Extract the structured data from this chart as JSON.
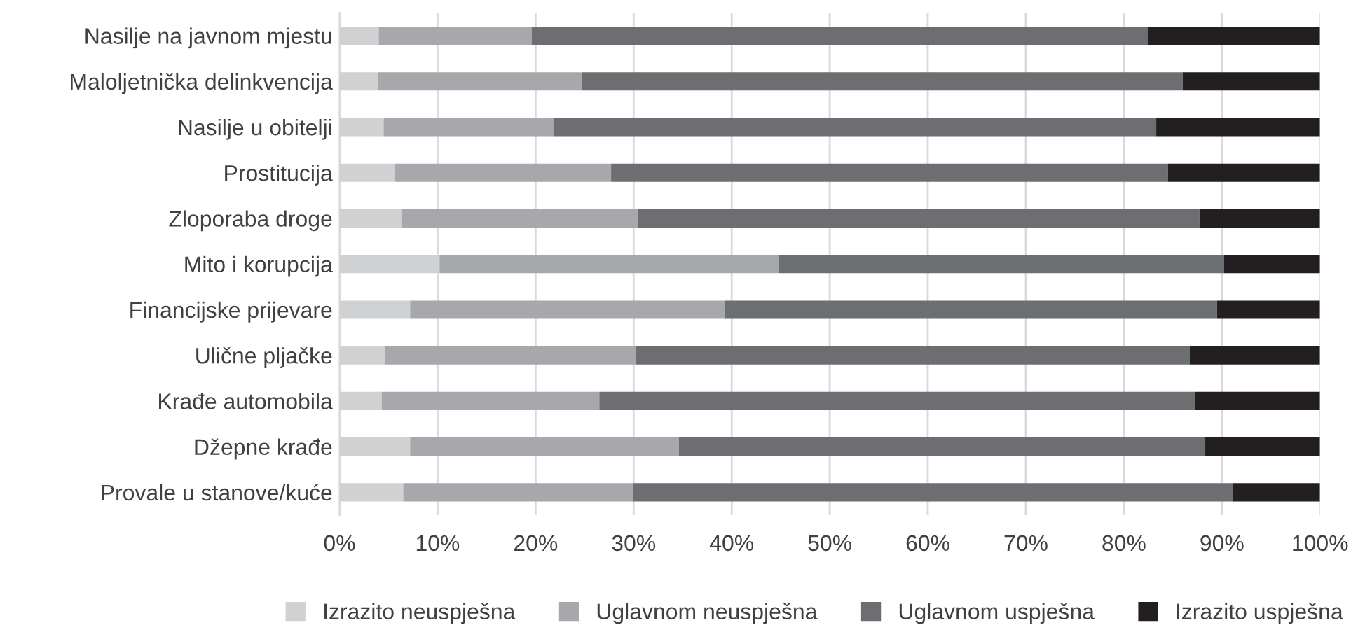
{
  "chart_data": {
    "type": "bar",
    "orientation": "horizontal",
    "stacked": true,
    "categories": [
      "Nasilje na javnom mjestu",
      "Maloljetnička delinkvencija",
      "Nasilje u obitelji",
      "Prostitucija",
      "Zloporaba droge",
      "Mito i korupcija",
      "Financijske prijevare",
      "Ulične pljačke",
      "Krađe automobila",
      "Džepne krađe",
      "Provale u stanove/kuće"
    ],
    "series": [
      {
        "name": "Izrazito neuspješna",
        "color": "#d0d1d3",
        "values": [
          4,
          3.9,
          4.5,
          5.6,
          6.3,
          10.2,
          7.2,
          4.6,
          4.3,
          7.2,
          6.5
        ]
      },
      {
        "name": "Uglavnom neuspješna",
        "color": "#a7a8ab",
        "values": [
          15.6,
          20.8,
          17.3,
          22.1,
          24.1,
          34.6,
          32.1,
          25.6,
          22.2,
          27.4,
          23.4
        ]
      },
      {
        "name": "Uglavnom uspješna",
        "color": "#6d6e71",
        "values": [
          62.9,
          61.3,
          61.5,
          56.8,
          57.3,
          45.4,
          50.2,
          56.5,
          60.7,
          53.7,
          61.2
        ]
      },
      {
        "name": "Izrazito uspješna",
        "color": "#231f20",
        "values": [
          17.5,
          14,
          16.7,
          15.5,
          12.3,
          9.8,
          10.5,
          13.3,
          12.8,
          11.7,
          8.9
        ]
      }
    ],
    "xlim": [
      0,
      100
    ],
    "xticks": [
      {
        "value": 0,
        "label": "0%"
      },
      {
        "value": 10,
        "label": "10%"
      },
      {
        "value": 20,
        "label": "20%"
      },
      {
        "value": 30,
        "label": "30%"
      },
      {
        "value": 40,
        "label": "40%"
      },
      {
        "value": 50,
        "label": "50%"
      },
      {
        "value": 60,
        "label": "60%"
      },
      {
        "value": 70,
        "label": "70%"
      },
      {
        "value": 80,
        "label": "80%"
      },
      {
        "value": 90,
        "label": "90%"
      },
      {
        "value": 100,
        "label": "100%"
      }
    ],
    "grid": "x",
    "legend": "bottom"
  }
}
